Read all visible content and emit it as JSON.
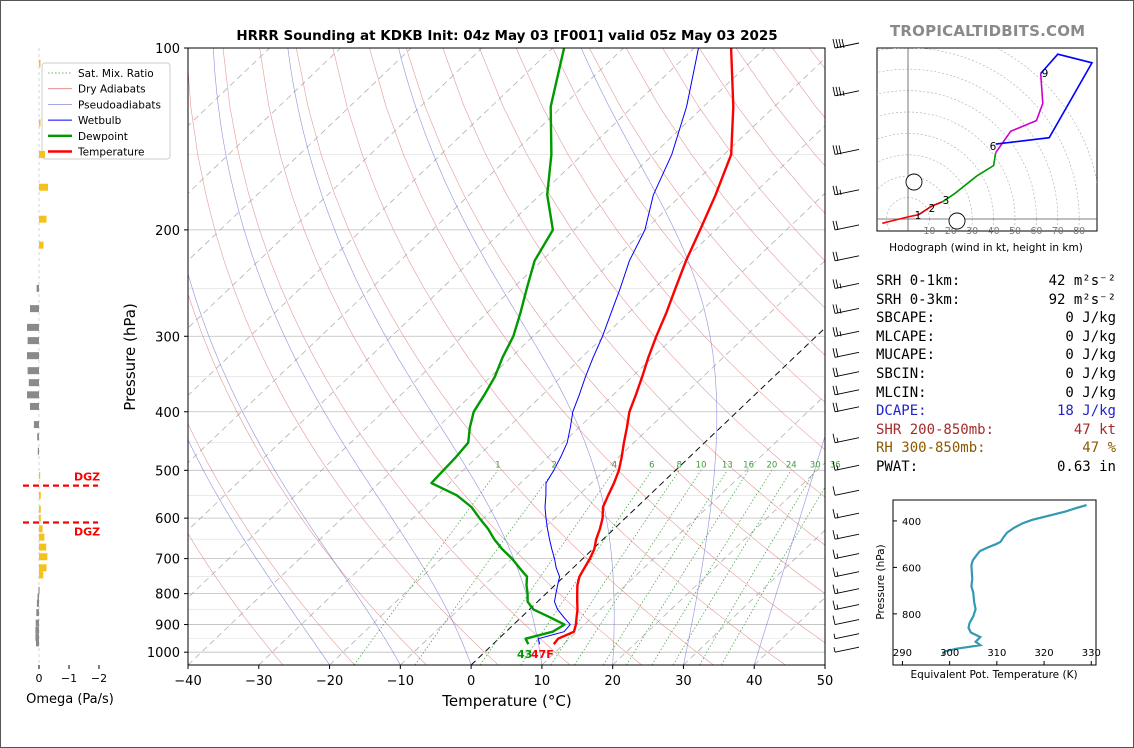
{
  "branding": "TROPICALTIDBITS.COM",
  "title": "HRRR Sounding at KDKB Init: 04z May 03 [F001] valid 05z May 03 2025",
  "stats": [
    {
      "label": "SRH 0-1km:",
      "value": "42 m²s⁻²",
      "color": "#000000"
    },
    {
      "label": "SRH 0-3km:",
      "value": "92 m²s⁻²",
      "color": "#000000"
    },
    {
      "label": "SBCAPE:",
      "value": "0 J/kg",
      "color": "#000000"
    },
    {
      "label": "MLCAPE:",
      "value": "0 J/kg",
      "color": "#000000"
    },
    {
      "label": "MUCAPE:",
      "value": "0 J/kg",
      "color": "#000000"
    },
    {
      "label": "SBCIN:",
      "value": "0 J/kg",
      "color": "#000000"
    },
    {
      "label": "MLCIN:",
      "value": "0 J/kg",
      "color": "#000000"
    },
    {
      "label": "DCAPE:",
      "value": "18 J/kg",
      "color": "#2222cc"
    },
    {
      "label": "SHR 200-850mb:",
      "value": "47 kt",
      "color": "#a52a2a"
    },
    {
      "label": "RH 300-850mb:",
      "value": "47 %",
      "color": "#8b5a00"
    },
    {
      "label": "PWAT:",
      "value": "0.63 in",
      "color": "#000000"
    }
  ],
  "chart_data": [
    {
      "type": "line",
      "name": "skew-t",
      "xlabel": "Temperature (°C)",
      "ylabel": "Pressure (hPa)",
      "xlim": [
        -40,
        50
      ],
      "ylim": [
        1050,
        100
      ],
      "y_scale": "log",
      "x_ticks": [
        -40,
        -30,
        -20,
        -10,
        0,
        10,
        20,
        30,
        40,
        50
      ],
      "x_tick_labels": [
        "−40",
        "−30",
        "−20",
        "−10",
        "0",
        "10",
        "20",
        "30",
        "40",
        "50"
      ],
      "y_ticks": [
        1000,
        900,
        800,
        700,
        600,
        500,
        400,
        300,
        200,
        100
      ],
      "legend": {
        "placement": "top-left",
        "entries": [
          "Sat. Mix. Ratio",
          "Dry Adiabats",
          "Pseudoadiabats",
          "Wetbulb",
          "Dewpoint",
          "Temperature"
        ]
      },
      "mixing_ratio_labels": [
        "1",
        "2",
        "4",
        "6",
        "8",
        "10",
        "13",
        "16",
        "20",
        "24",
        "30",
        "36"
      ],
      "surface_annotation": "43",
      "surface_annotation_2": "47F",
      "series": [
        {
          "name": "Temperature",
          "color": "#ff0000",
          "points": [
            [
              8.6,
              970
            ],
            [
              8.4,
              950
            ],
            [
              9.6,
              925
            ],
            [
              8.8,
              900
            ],
            [
              7.8,
              875
            ],
            [
              6.8,
              850
            ],
            [
              5.6,
              825
            ],
            [
              4.4,
              800
            ],
            [
              3.2,
              775
            ],
            [
              2.2,
              750
            ],
            [
              1.6,
              725
            ],
            [
              1.0,
              700
            ],
            [
              0.2,
              675
            ],
            [
              -1.0,
              650
            ],
            [
              -2.0,
              625
            ],
            [
              -3.2,
              600
            ],
            [
              -4.8,
              575
            ],
            [
              -5.8,
              550
            ],
            [
              -6.8,
              525
            ],
            [
              -8.0,
              500
            ],
            [
              -9.6,
              475
            ],
            [
              -11.4,
              450
            ],
            [
              -13.2,
              425
            ],
            [
              -15.2,
              400
            ],
            [
              -16.8,
              375
            ],
            [
              -18.6,
              350
            ],
            [
              -20.6,
              325
            ],
            [
              -22.6,
              300
            ],
            [
              -24.6,
              275
            ],
            [
              -27.0,
              250
            ],
            [
              -29.6,
              225
            ],
            [
              -32.2,
              200
            ],
            [
              -35.2,
              175
            ],
            [
              -39.0,
              150
            ],
            [
              -45.8,
              125
            ],
            [
              -54.8,
              100
            ]
          ]
        },
        {
          "name": "Dewpoint",
          "color": "#009900",
          "points": [
            [
              5.0,
              970
            ],
            [
              3.8,
              950
            ],
            [
              6.6,
              925
            ],
            [
              7.2,
              900
            ],
            [
              4.0,
              875
            ],
            [
              0.6,
              850
            ],
            [
              -1.4,
              825
            ],
            [
              -2.6,
              800
            ],
            [
              -4.0,
              775
            ],
            [
              -5.2,
              750
            ],
            [
              -7.6,
              725
            ],
            [
              -10.0,
              700
            ],
            [
              -12.8,
              675
            ],
            [
              -15.4,
              650
            ],
            [
              -17.8,
              625
            ],
            [
              -20.6,
              600
            ],
            [
              -23.4,
              575
            ],
            [
              -27.2,
              550
            ],
            [
              -32.6,
              525
            ],
            [
              -32.8,
              500
            ],
            [
              -33.0,
              475
            ],
            [
              -33.4,
              450
            ],
            [
              -35.4,
              425
            ],
            [
              -37.2,
              400
            ],
            [
              -38.2,
              375
            ],
            [
              -39.4,
              350
            ],
            [
              -41.2,
              325
            ],
            [
              -42.8,
              300
            ],
            [
              -45.2,
              275
            ],
            [
              -48.0,
              250
            ],
            [
              -51.0,
              225
            ],
            [
              -53.0,
              200
            ],
            [
              -59.0,
              175
            ],
            [
              -64.4,
              150
            ],
            [
              -71.6,
              125
            ],
            [
              -78.4,
              100
            ]
          ]
        },
        {
          "name": "Wetbulb",
          "color": "#0000ff",
          "points": [
            [
              6.6,
              970
            ],
            [
              5.6,
              950
            ],
            [
              8.2,
              925
            ],
            [
              8.0,
              900
            ],
            [
              6.0,
              875
            ],
            [
              4.0,
              850
            ],
            [
              2.4,
              825
            ],
            [
              1.4,
              800
            ],
            [
              0.4,
              775
            ],
            [
              -0.6,
              750
            ],
            [
              -2.4,
              725
            ],
            [
              -4.0,
              700
            ],
            [
              -5.8,
              675
            ],
            [
              -7.6,
              650
            ],
            [
              -9.4,
              625
            ],
            [
              -11.2,
              600
            ],
            [
              -13.0,
              575
            ],
            [
              -14.6,
              550
            ],
            [
              -16.4,
              525
            ],
            [
              -17.2,
              500
            ],
            [
              -18.2,
              475
            ],
            [
              -19.4,
              450
            ],
            [
              -21.2,
              425
            ],
            [
              -23.2,
              400
            ],
            [
              -24.8,
              375
            ],
            [
              -26.6,
              350
            ],
            [
              -28.4,
              325
            ],
            [
              -30.2,
              300
            ],
            [
              -32.4,
              275
            ],
            [
              -34.8,
              250
            ],
            [
              -37.6,
              225
            ],
            [
              -40.0,
              200
            ],
            [
              -44.0,
              175
            ],
            [
              -47.4,
              150
            ],
            [
              -52.4,
              125
            ],
            [
              -59.4,
              100
            ]
          ]
        }
      ]
    },
    {
      "type": "line",
      "name": "hodograph",
      "xlabel": "Hodograph (wind in kt, height in km)",
      "ring_labels": [
        "10",
        "20",
        "30",
        "40",
        "50",
        "60",
        "70",
        "80"
      ],
      "height_labels": [
        "1",
        "2",
        "3",
        "6",
        "9"
      ],
      "series": [
        {
          "name": "0-1 km",
          "color": "#ff0000",
          "points": [
            [
              -12,
              -2
            ],
            [
              -8,
              -1
            ],
            [
              0,
              1
            ],
            [
              5,
              2
            ]
          ]
        },
        {
          "name": "1-3 km",
          "color": "#cc0000",
          "points": [
            [
              5,
              2
            ],
            [
              11,
              6
            ],
            [
              16,
              8
            ]
          ]
        },
        {
          "name": "3-6 km",
          "color": "#009900",
          "points": [
            [
              16,
              8
            ],
            [
              22,
              12
            ],
            [
              32,
              20
            ],
            [
              40,
              25
            ],
            [
              41,
              31
            ]
          ]
        },
        {
          "name": "6-9 km",
          "color": "#cc00cc",
          "points": [
            [
              41,
              31
            ],
            [
              48,
              41
            ],
            [
              60,
              46
            ],
            [
              63,
              54
            ],
            [
              62,
              68
            ]
          ]
        },
        {
          "name": "9-12 km",
          "color": "#0000ff",
          "points": [
            [
              62,
              68
            ],
            [
              70,
              77
            ],
            [
              86,
              73
            ],
            [
              66,
              38
            ],
            [
              41,
              35
            ]
          ]
        }
      ]
    },
    {
      "type": "line",
      "name": "theta-e",
      "xlabel": "Equivalent Pot. Temperature (K)",
      "ylabel": "Pressure (hPa)",
      "xlim": [
        288,
        331
      ],
      "ylim": [
        1020,
        310
      ],
      "x_ticks": [
        290,
        300,
        310,
        320,
        330
      ],
      "y_ticks": [
        400,
        600,
        800
      ],
      "series": [
        {
          "name": "Theta-E",
          "color": "#3399b3",
          "points": [
            [
              298.5,
              975
            ],
            [
              299.2,
              960
            ],
            [
              301.5,
              950
            ],
            [
              306.5,
              935
            ],
            [
              305.5,
              920
            ],
            [
              306.5,
              900
            ],
            [
              304.5,
              880
            ],
            [
              304,
              860
            ],
            [
              304.2,
              840
            ],
            [
              305,
              810
            ],
            [
              305.5,
              780
            ],
            [
              305.2,
              750
            ],
            [
              305,
              710
            ],
            [
              304.6,
              680
            ],
            [
              304.8,
              650
            ],
            [
              304.7,
              620
            ],
            [
              304.6,
              590
            ],
            [
              304.9,
              570
            ],
            [
              305.6,
              550
            ],
            [
              306.4,
              530
            ],
            [
              308,
              515
            ],
            [
              309.8,
              500
            ],
            [
              310.8,
              490
            ],
            [
              311.4,
              470
            ],
            [
              312.2,
              450
            ],
            [
              313.6,
              430
            ],
            [
              315.5,
              410
            ],
            [
              317.5,
              395
            ],
            [
              320.5,
              380
            ],
            [
              324.5,
              360
            ],
            [
              326.8,
              345
            ],
            [
              329,
              332
            ]
          ]
        }
      ]
    },
    {
      "type": "bar",
      "name": "omega",
      "xlabel": "Omega (Pa/s)",
      "x_ticks": [
        "0",
        "−1",
        "−2"
      ],
      "dgz_label": "DGZ",
      "dgz_pressures": [
        530,
        610
      ],
      "values": [
        [
          106,
          -0.05
        ],
        [
          133,
          -0.05
        ],
        [
          150,
          -0.2
        ],
        [
          170,
          -0.3
        ],
        [
          192,
          -0.25
        ],
        [
          212,
          -0.15
        ],
        [
          250,
          0.08
        ],
        [
          270,
          0.3
        ],
        [
          290,
          0.4
        ],
        [
          305,
          0.38
        ],
        [
          323,
          0.4
        ],
        [
          342,
          0.38
        ],
        [
          358,
          0.34
        ],
        [
          375,
          0.4
        ],
        [
          392,
          0.3
        ],
        [
          420,
          0.17
        ],
        [
          440,
          0.06
        ],
        [
          465,
          0.04
        ],
        [
          510,
          -0.04
        ],
        [
          550,
          -0.06
        ],
        [
          580,
          -0.06
        ],
        [
          600,
          -0.06
        ],
        [
          625,
          -0.12
        ],
        [
          645,
          -0.18
        ],
        [
          670,
          -0.24
        ],
        [
          695,
          -0.28
        ],
        [
          725,
          -0.25
        ],
        [
          745,
          -0.14
        ],
        [
          790,
          0.02
        ],
        [
          810,
          0.05
        ],
        [
          830,
          0.07
        ],
        [
          860,
          0.09
        ],
        [
          895,
          0.11
        ],
        [
          920,
          0.12
        ],
        [
          945,
          0.12
        ],
        [
          965,
          0.1
        ]
      ]
    }
  ],
  "wind_barbs": [
    [
      100,
      40
    ],
    [
      120,
      35
    ],
    [
      150,
      30
    ],
    [
      175,
      25
    ],
    [
      200,
      20
    ],
    [
      225,
      20
    ],
    [
      250,
      25
    ],
    [
      275,
      25
    ],
    [
      300,
      25
    ],
    [
      325,
      20
    ],
    [
      350,
      20
    ],
    [
      375,
      20
    ],
    [
      400,
      20
    ],
    [
      450,
      15
    ],
    [
      500,
      15
    ],
    [
      550,
      10
    ],
    [
      600,
      15
    ],
    [
      650,
      15
    ],
    [
      700,
      15
    ],
    [
      750,
      15
    ],
    [
      800,
      15
    ],
    [
      850,
      15
    ],
    [
      900,
      10
    ],
    [
      950,
      5
    ],
    [
      1000,
      5
    ]
  ]
}
